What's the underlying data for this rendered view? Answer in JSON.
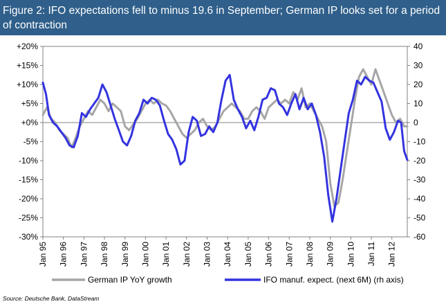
{
  "title": "Figure 2: IFO expectations fell to minus 19.6 in September; German IP looks set for a period of contraction",
  "source": "Source: Deutsche Bank, DataStream",
  "chart_data": {
    "type": "line",
    "x_start_year": 1995,
    "x_end_year": 2012.75,
    "x_tick_labels": [
      "Jan 95",
      "Jan 96",
      "Jan 97",
      "Jan 98",
      "Jan 99",
      "Jan 00",
      "Jan 01",
      "Jan 02",
      "Jan 03",
      "Jan 04",
      "Jan 05",
      "Jan 06",
      "Jan 07",
      "Jan 08",
      "Jan 09",
      "Jan 10",
      "Jan 11",
      "Jan 12"
    ],
    "x_tick_years": [
      1995,
      1996,
      1997,
      1998,
      1999,
      2000,
      2001,
      2002,
      2003,
      2004,
      2005,
      2006,
      2007,
      2008,
      2009,
      2010,
      2011,
      2012
    ],
    "y_left": {
      "min": -30,
      "max": 20,
      "tick_labels": [
        "+20%",
        "+15%",
        "+10%",
        "+5%",
        "+0%",
        "-5%",
        "-10%",
        "-15%",
        "-20%",
        "-25%",
        "-30%"
      ],
      "tick_values": [
        20,
        15,
        10,
        5,
        0,
        -5,
        -10,
        -15,
        -20,
        -25,
        -30
      ]
    },
    "y_right": {
      "min": -60,
      "max": 40,
      "tick_labels": [
        "40",
        "30",
        "20",
        "10",
        "0",
        "-10",
        "-20",
        "-30",
        "-40",
        "-50",
        "-60"
      ],
      "tick_values": [
        40,
        30,
        20,
        10,
        0,
        -10,
        -20,
        -30,
        -40,
        -50,
        -60
      ]
    },
    "series": [
      {
        "name": "German IP YoY growth",
        "axis": "left",
        "color": "#a6a6a6",
        "points": [
          [
            1995.0,
            2
          ],
          [
            1995.2,
            4
          ],
          [
            1995.4,
            1
          ],
          [
            1995.6,
            0
          ],
          [
            1995.8,
            -2
          ],
          [
            1996.0,
            -3
          ],
          [
            1996.2,
            -4
          ],
          [
            1996.4,
            -6.5
          ],
          [
            1996.6,
            -4
          ],
          [
            1996.8,
            -1
          ],
          [
            1997.0,
            1
          ],
          [
            1997.2,
            3
          ],
          [
            1997.4,
            2
          ],
          [
            1997.6,
            4
          ],
          [
            1997.8,
            6
          ],
          [
            1998.0,
            5
          ],
          [
            1998.2,
            3
          ],
          [
            1998.4,
            5
          ],
          [
            1998.6,
            4
          ],
          [
            1998.8,
            3
          ],
          [
            1999.0,
            -1
          ],
          [
            1999.2,
            -2
          ],
          [
            1999.4,
            -0.5
          ],
          [
            1999.6,
            1
          ],
          [
            1999.8,
            3
          ],
          [
            2000.0,
            5
          ],
          [
            2000.2,
            6
          ],
          [
            2000.4,
            5
          ],
          [
            2000.6,
            6
          ],
          [
            2000.8,
            5
          ],
          [
            2001.0,
            4.5
          ],
          [
            2001.2,
            3
          ],
          [
            2001.4,
            1
          ],
          [
            2001.6,
            -1
          ],
          [
            2001.8,
            -3
          ],
          [
            2002.0,
            -4
          ],
          [
            2002.2,
            -3
          ],
          [
            2002.4,
            -2
          ],
          [
            2002.6,
            0
          ],
          [
            2002.8,
            1
          ],
          [
            2003.0,
            -1
          ],
          [
            2003.2,
            -2
          ],
          [
            2003.4,
            -1
          ],
          [
            2003.6,
            1
          ],
          [
            2003.8,
            3
          ],
          [
            2004.0,
            4
          ],
          [
            2004.2,
            5
          ],
          [
            2004.4,
            4
          ],
          [
            2004.6,
            3
          ],
          [
            2004.8,
            1
          ],
          [
            2005.0,
            1
          ],
          [
            2005.2,
            3
          ],
          [
            2005.4,
            4
          ],
          [
            2005.6,
            3
          ],
          [
            2005.8,
            1
          ],
          [
            2006.0,
            4
          ],
          [
            2006.2,
            5
          ],
          [
            2006.4,
            6
          ],
          [
            2006.6,
            5
          ],
          [
            2006.8,
            6
          ],
          [
            2007.0,
            5
          ],
          [
            2007.2,
            8
          ],
          [
            2007.4,
            6
          ],
          [
            2007.6,
            9
          ],
          [
            2007.8,
            4
          ],
          [
            2008.0,
            5
          ],
          [
            2008.2,
            3
          ],
          [
            2008.4,
            1
          ],
          [
            2008.6,
            -1
          ],
          [
            2008.8,
            -5
          ],
          [
            2009.0,
            -16
          ],
          [
            2009.2,
            -22
          ],
          [
            2009.4,
            -21
          ],
          [
            2009.6,
            -15
          ],
          [
            2009.8,
            -8
          ],
          [
            2010.0,
            -1
          ],
          [
            2010.2,
            6
          ],
          [
            2010.4,
            12
          ],
          [
            2010.6,
            14
          ],
          [
            2010.8,
            12
          ],
          [
            2011.0,
            10
          ],
          [
            2011.2,
            14
          ],
          [
            2011.4,
            11
          ],
          [
            2011.6,
            8
          ],
          [
            2011.8,
            5
          ],
          [
            2012.0,
            2
          ],
          [
            2012.2,
            0
          ],
          [
            2012.4,
            1
          ],
          [
            2012.6,
            -1
          ],
          [
            2012.75,
            -1
          ]
        ]
      },
      {
        "name": "IFO manuf. expect. (next 6M) (rh axis)",
        "axis": "right",
        "color": "#3333e0",
        "points": [
          [
            1995.0,
            21
          ],
          [
            1995.15,
            15
          ],
          [
            1995.3,
            4
          ],
          [
            1995.5,
            0
          ],
          [
            1995.7,
            -2
          ],
          [
            1995.9,
            -5
          ],
          [
            1996.1,
            -8
          ],
          [
            1996.3,
            -12
          ],
          [
            1996.5,
            -13
          ],
          [
            1996.7,
            -7
          ],
          [
            1996.9,
            5
          ],
          [
            1997.1,
            3
          ],
          [
            1997.3,
            7
          ],
          [
            1997.5,
            10
          ],
          [
            1997.7,
            13
          ],
          [
            1997.9,
            20
          ],
          [
            1998.1,
            16
          ],
          [
            1998.3,
            9
          ],
          [
            1998.5,
            2
          ],
          [
            1998.7,
            -4
          ],
          [
            1998.9,
            -10
          ],
          [
            1999.1,
            -12
          ],
          [
            1999.3,
            -7
          ],
          [
            1999.5,
            1
          ],
          [
            1999.7,
            5
          ],
          [
            1999.9,
            12
          ],
          [
            2000.1,
            10
          ],
          [
            2000.3,
            13
          ],
          [
            2000.5,
            12
          ],
          [
            2000.7,
            9
          ],
          [
            2000.9,
            1
          ],
          [
            2001.1,
            -6
          ],
          [
            2001.3,
            -9
          ],
          [
            2001.5,
            -14
          ],
          [
            2001.7,
            -22
          ],
          [
            2001.9,
            -20
          ],
          [
            2002.1,
            -5
          ],
          [
            2002.3,
            3
          ],
          [
            2002.5,
            1
          ],
          [
            2002.7,
            -7
          ],
          [
            2002.9,
            -6
          ],
          [
            2003.1,
            -2
          ],
          [
            2003.3,
            -5
          ],
          [
            2003.5,
            0
          ],
          [
            2003.7,
            12
          ],
          [
            2003.9,
            22
          ],
          [
            2004.1,
            25
          ],
          [
            2004.3,
            12
          ],
          [
            2004.5,
            7
          ],
          [
            2004.7,
            3
          ],
          [
            2004.9,
            -3
          ],
          [
            2005.1,
            1
          ],
          [
            2005.3,
            -4
          ],
          [
            2005.5,
            3
          ],
          [
            2005.7,
            12
          ],
          [
            2005.9,
            13
          ],
          [
            2006.1,
            18
          ],
          [
            2006.3,
            17
          ],
          [
            2006.5,
            10
          ],
          [
            2006.7,
            8
          ],
          [
            2006.9,
            4
          ],
          [
            2007.1,
            10
          ],
          [
            2007.3,
            15
          ],
          [
            2007.5,
            7
          ],
          [
            2007.7,
            13
          ],
          [
            2007.9,
            7
          ],
          [
            2008.1,
            10
          ],
          [
            2008.3,
            4
          ],
          [
            2008.5,
            -5
          ],
          [
            2008.7,
            -18
          ],
          [
            2008.9,
            -38
          ],
          [
            2009.1,
            -52
          ],
          [
            2009.3,
            -40
          ],
          [
            2009.5,
            -25
          ],
          [
            2009.7,
            -10
          ],
          [
            2009.9,
            5
          ],
          [
            2010.1,
            12
          ],
          [
            2010.3,
            22
          ],
          [
            2010.5,
            20
          ],
          [
            2010.7,
            24
          ],
          [
            2010.9,
            22
          ],
          [
            2011.1,
            21
          ],
          [
            2011.3,
            16
          ],
          [
            2011.5,
            11
          ],
          [
            2011.7,
            -3
          ],
          [
            2011.9,
            -9
          ],
          [
            2012.1,
            -5
          ],
          [
            2012.3,
            1
          ],
          [
            2012.45,
            0
          ],
          [
            2012.6,
            -15
          ],
          [
            2012.75,
            -19.6
          ]
        ]
      }
    ]
  }
}
